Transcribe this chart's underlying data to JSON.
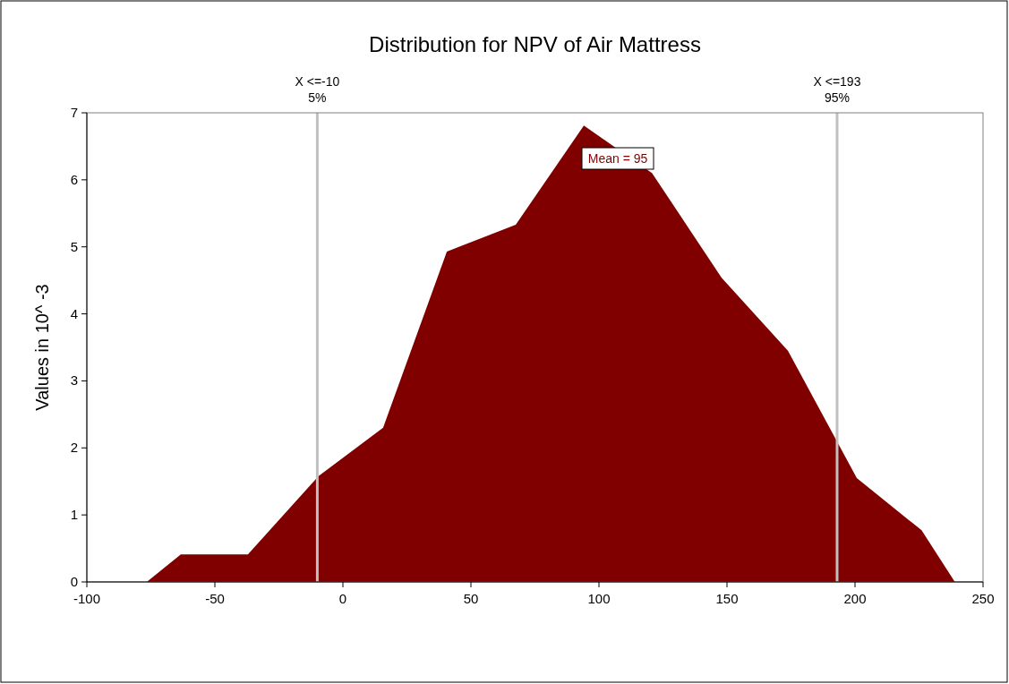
{
  "chart_data": {
    "type": "area",
    "title": "Distribution for NPV of Air Mattress",
    "ylabel": "Values in 10^ -3",
    "x": [
      -76.6,
      -63.3,
      -37.1,
      -9.5,
      15.7,
      40.6,
      67.5,
      94.1,
      120.7,
      147.9,
      173.8,
      200.7,
      226,
      239
    ],
    "series": [
      {
        "color": "#800000",
        "values": [
          0,
          0.41,
          0.41,
          1.58,
          2.3,
          4.93,
          5.33,
          6.81,
          6.1,
          4.54,
          3.45,
          1.55,
          0.77,
          0
        ]
      }
    ],
    "xlim": [
      -100,
      250
    ],
    "xticks": [
      -100,
      -50,
      0,
      50,
      100,
      150,
      200,
      250
    ],
    "ylim": [
      0,
      7
    ],
    "yticks": [
      0,
      1,
      2,
      3,
      4,
      5,
      6,
      7
    ],
    "ref_lines": [
      {
        "axis": "x",
        "value": -10,
        "label": "X <=-10\n5%",
        "color": "#c0c0c0"
      },
      {
        "axis": "x",
        "value": 193,
        "label": "X <=193\n95%",
        "color": "#c0c0c0"
      }
    ],
    "annotations": [
      "Mean = 95"
    ]
  }
}
